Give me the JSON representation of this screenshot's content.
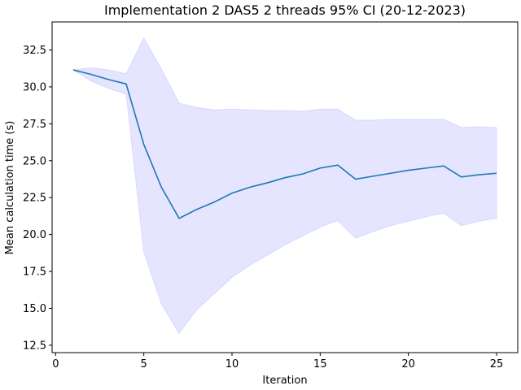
{
  "chart_data": {
    "type": "line",
    "title": "Implementation 2 DAS5 2 threads 95% CI (20-12-2023)",
    "xlabel": "Iteration",
    "ylabel": "Mean calculation time (s)",
    "xlim": [
      -0.2,
      26.2
    ],
    "ylim": [
      12.0,
      34.4
    ],
    "xticks": [
      0,
      5,
      10,
      15,
      20,
      25
    ],
    "yticks": [
      12.5,
      15.0,
      17.5,
      20.0,
      22.5,
      25.0,
      27.5,
      30.0,
      32.5
    ],
    "grid": false,
    "series": [
      {
        "color": "#1f77b4",
        "x": [
          1,
          2,
          3,
          4,
          5,
          6,
          7,
          8,
          9,
          10,
          11,
          12,
          13,
          14,
          15,
          16,
          17,
          18,
          19,
          20,
          21,
          22,
          23,
          24,
          25
        ],
        "y": [
          31.15,
          30.85,
          30.5,
          30.2,
          26.1,
          23.2,
          21.1,
          21.7,
          22.2,
          22.8,
          23.2,
          23.5,
          23.85,
          24.1,
          24.5,
          24.7,
          23.75,
          23.95,
          24.15,
          24.35,
          24.5,
          24.65,
          23.9,
          24.05,
          24.15
        ],
        "ci_lower": [
          31.15,
          30.4,
          29.9,
          29.5,
          18.8,
          15.3,
          13.3,
          14.9,
          16.0,
          17.1,
          17.9,
          18.6,
          19.3,
          19.9,
          20.5,
          20.95,
          19.75,
          20.2,
          20.6,
          20.9,
          21.2,
          21.45,
          20.6,
          20.9,
          21.1
        ],
        "ci_upper": [
          31.15,
          31.3,
          31.15,
          30.9,
          33.3,
          31.2,
          28.9,
          28.6,
          28.45,
          28.5,
          28.45,
          28.4,
          28.4,
          28.35,
          28.5,
          28.5,
          27.75,
          27.75,
          27.8,
          27.8,
          27.8,
          27.8,
          27.25,
          27.3,
          27.25
        ],
        "ci_color": "#0000ff"
      }
    ]
  }
}
